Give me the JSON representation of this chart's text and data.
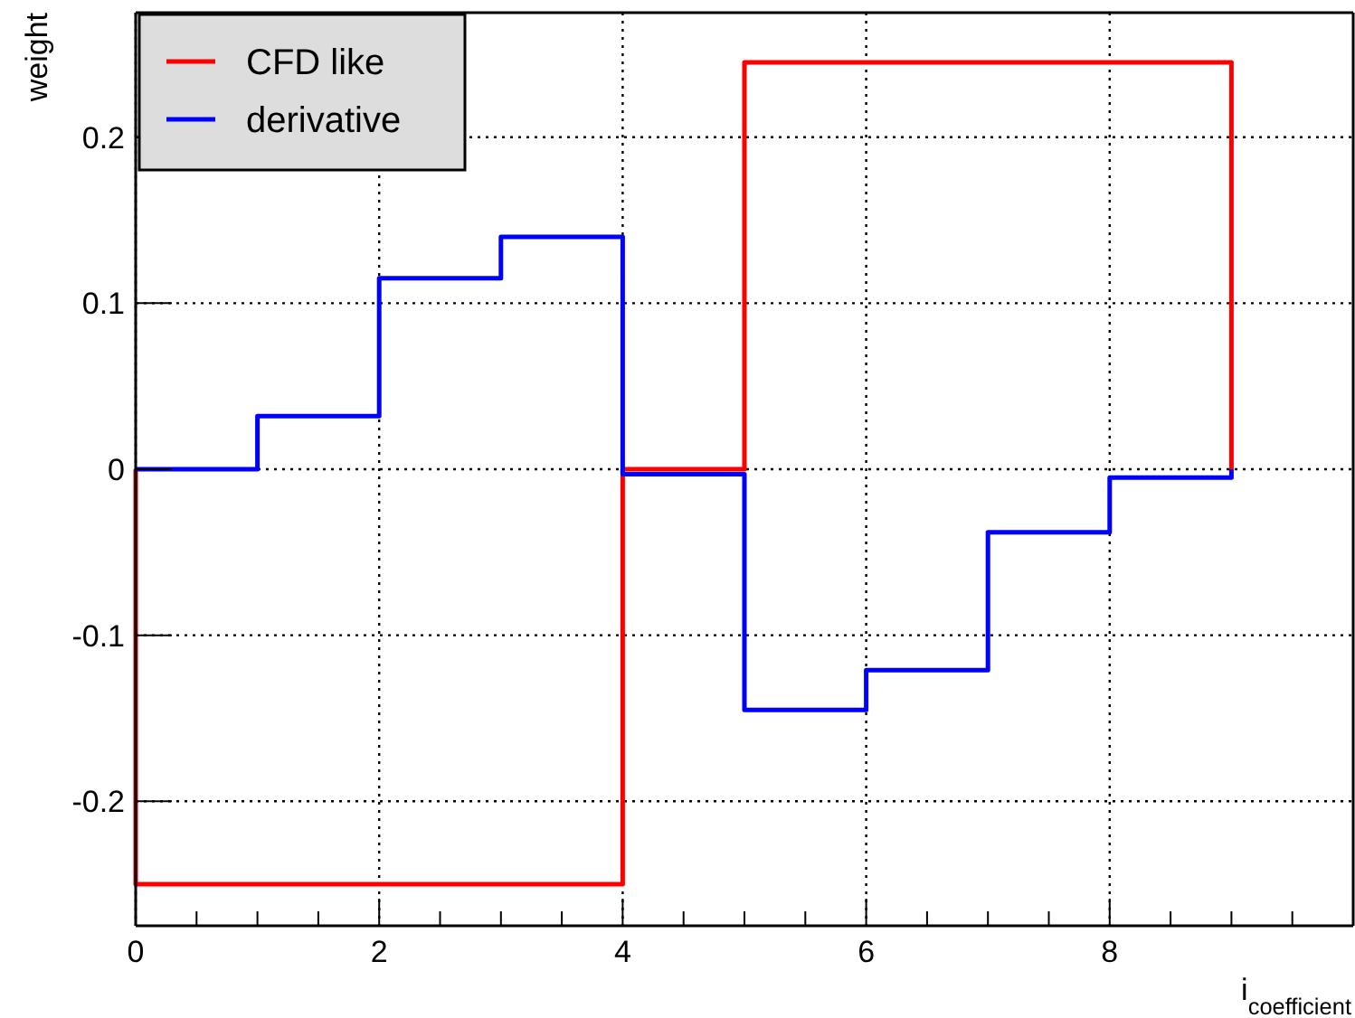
{
  "chart_data": {
    "type": "histogram",
    "xlabel": "i$_{coefficient}$",
    "ylabel": "weight",
    "bins": [
      0,
      1,
      2,
      3,
      4,
      5,
      6,
      7,
      8,
      9
    ],
    "series": [
      {
        "name": "CFD like",
        "color": "#ff0000",
        "values": [
          -0.25,
          -0.25,
          -0.25,
          -0.25,
          0,
          0.245,
          0.245,
          0.245,
          0.245
        ]
      },
      {
        "name": "derivative",
        "color": "#0000ff",
        "values": [
          0,
          0.032,
          0.115,
          0.14,
          -0.003,
          -0.145,
          -0.121,
          -0.038,
          -0.005
        ]
      }
    ],
    "xlim": [
      0,
      10
    ],
    "xticks": [
      0,
      {
        "value": 0.5,
        "label": null
      },
      {
        "value": 1,
        "label": null
      },
      {
        "value": 1.5,
        "label": null
      },
      2,
      {
        "value": 2.5,
        "label": null
      },
      {
        "value": 3,
        "label": null
      },
      {
        "value": 3.5,
        "label": null
      },
      4,
      {
        "value": 4.5,
        "label": null
      },
      {
        "value": 5,
        "label": null
      },
      {
        "value": 5.5,
        "label": null
      },
      6,
      {
        "value": 6.5,
        "label": null
      },
      {
        "value": 7,
        "label": null
      },
      {
        "value": 7.5,
        "label": null
      },
      8,
      {
        "value": 8.5,
        "label": null
      },
      {
        "value": 9,
        "label": null
      },
      {
        "value": 9.5,
        "label": null
      }
    ],
    "ylim": [
      -0.275,
      0.275
    ],
    "yticks": [
      -0.2,
      -0.1,
      0,
      0.1,
      0.2
    ],
    "grid": true,
    "legend": "top left",
    "line_style": "solid"
  }
}
